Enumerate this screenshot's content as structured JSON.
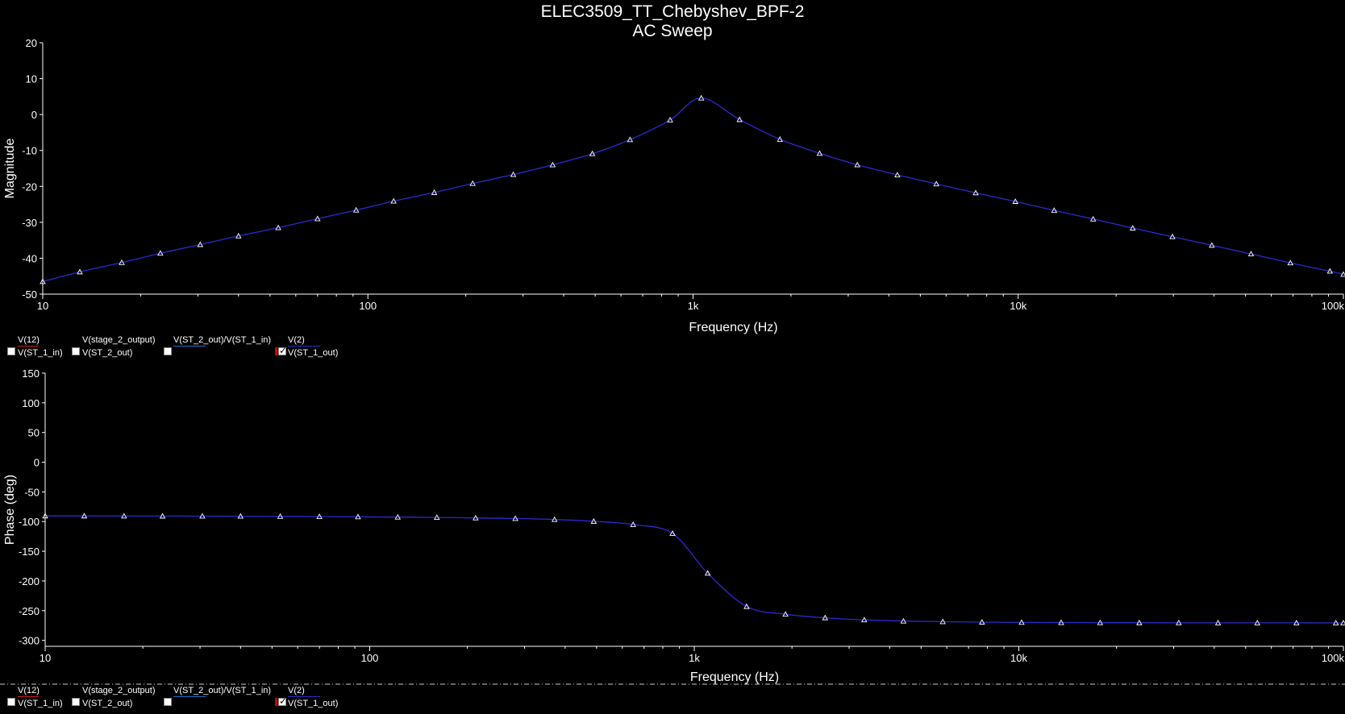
{
  "header": {
    "title": "ELEC3509_TT_Chebyshev_BPF-2",
    "subtitle": "AC Sweep"
  },
  "colors": {
    "background": "#000000",
    "trace": "#2a2ad0",
    "marker": "#ffffff",
    "axis": "#ffffff",
    "v12_swatch": "#d01818",
    "ratio_swatch": "#1f6fd0",
    "v2_swatch": "#2a2ad0"
  },
  "legend": {
    "top_row": [
      "V(12)",
      "V(stage_2_output)",
      "V(ST_2_out)/V(ST_1_in)",
      "V(2)"
    ],
    "bottom_row": [
      "V(ST_1_in)",
      "V(ST_2_out)",
      "",
      "V(ST_1_out)"
    ],
    "checked": [
      false,
      false,
      false,
      true
    ]
  },
  "chart_data": [
    {
      "type": "line",
      "name": "magnitude",
      "xlabel": "Frequency (Hz)",
      "ylabel": "Magnitude",
      "x_scale": "log",
      "xlim": [
        10,
        100000
      ],
      "ylim": [
        -50,
        20
      ],
      "xticks": [
        10,
        100,
        1000,
        10000,
        100000
      ],
      "xtick_labels": [
        "10",
        "100",
        "1k",
        "10k",
        "100k"
      ],
      "yticks": [
        20,
        10,
        0,
        -10,
        -20,
        -30,
        -40,
        -50
      ],
      "ytick_labels": [
        "20",
        "10",
        "0",
        "-10",
        "-20",
        "-30",
        "-40",
        "-50"
      ],
      "grid": false,
      "series": [
        {
          "x": [
            10,
            13,
            17.5,
            23,
            30.5,
            40,
            53,
            70,
            92,
            120,
            160,
            210,
            280,
            370,
            490,
            640,
            850,
            1060,
            1390,
            1850,
            2450,
            3200,
            4250,
            5600,
            7400,
            9800,
            12900,
            17000,
            22500,
            29800,
            39400,
            52000,
            68700,
            90900,
            100000
          ],
          "y": [
            -46.5,
            -43.8,
            -41.2,
            -38.6,
            -36.2,
            -33.8,
            -31.5,
            -29.0,
            -26.6,
            -24.1,
            -21.7,
            -19.2,
            -16.7,
            -14.0,
            -10.9,
            -7.0,
            -1.5,
            4.6,
            -1.4,
            -6.9,
            -10.8,
            -14.0,
            -16.8,
            -19.3,
            -21.8,
            -24.2,
            -26.7,
            -29.1,
            -31.6,
            -34.0,
            -36.4,
            -38.8,
            -41.3,
            -43.6,
            -44.5
          ],
          "marker": "triangle"
        }
      ]
    },
    {
      "type": "line",
      "name": "phase",
      "xlabel": "Frequency (Hz)",
      "ylabel": "Phase (deg)",
      "x_scale": "log",
      "xlim": [
        10,
        100000
      ],
      "ylim": [
        -310,
        150
      ],
      "xticks": [
        10,
        100,
        1000,
        10000,
        100000
      ],
      "xtick_labels": [
        "10",
        "100",
        "1k",
        "10k",
        "100k"
      ],
      "yticks": [
        150,
        100,
        50,
        0,
        -50,
        -100,
        -150,
        -200,
        -250,
        -300
      ],
      "ytick_labels": [
        "150",
        "100",
        "50",
        "0",
        "-50",
        "-100",
        "-150",
        "-200",
        "-250",
        "-300"
      ],
      "grid": false,
      "series": [
        {
          "x": [
            10,
            13.2,
            17.5,
            23,
            30.5,
            40,
            53,
            70,
            92,
            122,
            161,
            212,
            281,
            371,
            490,
            648,
            857,
            1100,
            1450,
            1910,
            2530,
            3340,
            4410,
            5830,
            7700,
            10200,
            13500,
            17800,
            23500,
            31100,
            41100,
            54300,
            71700,
            94800,
            100000
          ],
          "y": [
            -90.5,
            -90.5,
            -90.6,
            -90.7,
            -90.8,
            -91.0,
            -91.3,
            -91.6,
            -92.0,
            -92.5,
            -93.0,
            -93.8,
            -94.8,
            -96.5,
            -99.5,
            -105.0,
            -120.0,
            -187.0,
            -243.0,
            -256.0,
            -262.0,
            -265.5,
            -267.5,
            -268.5,
            -269.3,
            -269.7,
            -270.0,
            -270.2,
            -270.3,
            -270.4,
            -270.5,
            -270.5,
            -270.5,
            -270.6,
            -270.6
          ],
          "marker": "triangle"
        }
      ]
    }
  ]
}
